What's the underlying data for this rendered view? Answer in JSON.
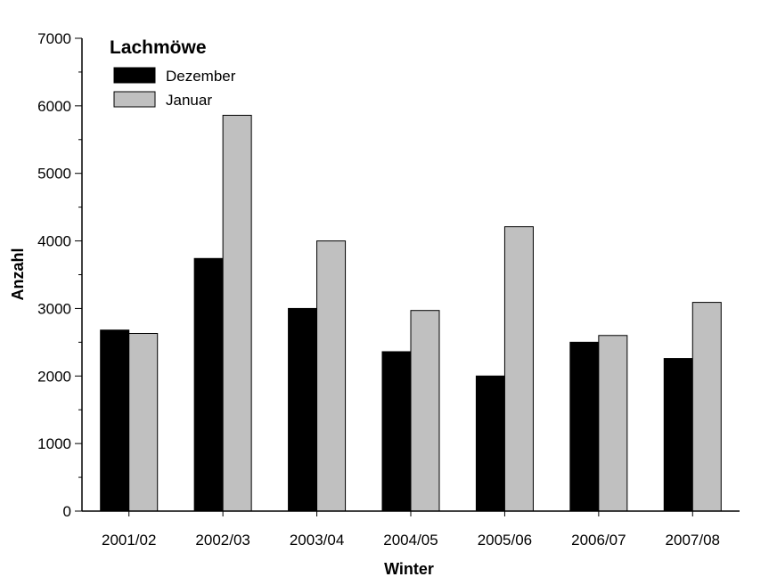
{
  "chart_data": {
    "type": "bar",
    "title": "Lachmöwe",
    "xlabel": "Winter",
    "ylabel": "Anzahl",
    "categories": [
      "2001/02",
      "2002/03",
      "2003/04",
      "2004/05",
      "2005/06",
      "2006/07",
      "2007/08"
    ],
    "series": [
      {
        "name": "Dezember",
        "color": "#000000",
        "values": [
          2680,
          3740,
          3000,
          2360,
          2000,
          2500,
          2260
        ]
      },
      {
        "name": "Januar",
        "color": "#c0c0c0",
        "values": [
          2630,
          5860,
          4000,
          2970,
          4210,
          2600,
          3090
        ]
      }
    ],
    "ylim": [
      0,
      7000
    ],
    "yticks": [
      0,
      1000,
      2000,
      3000,
      4000,
      5000,
      6000,
      7000
    ],
    "grid": false,
    "legend_position": "top-left"
  }
}
